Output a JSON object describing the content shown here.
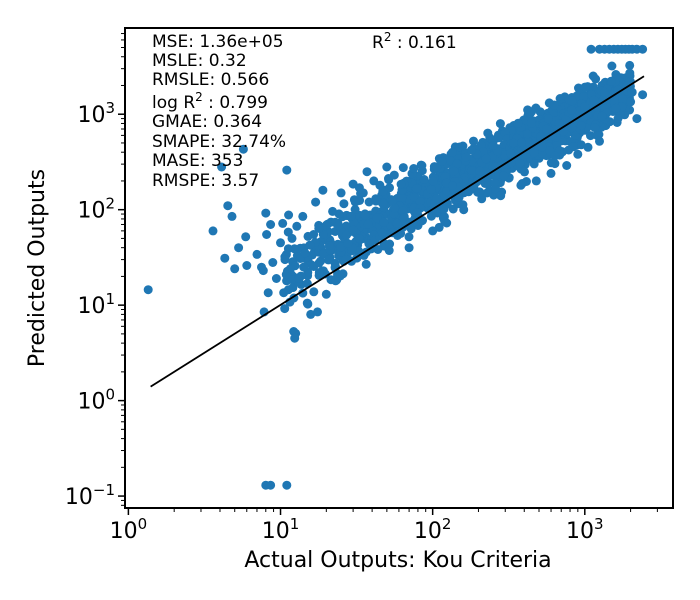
{
  "chart_data": {
    "type": "scatter",
    "title": "",
    "xlabel": "Actual Outputs: Kou Criteria",
    "ylabel": "Predicted Outputs",
    "xscale": "log",
    "yscale": "log",
    "xlim": [
      0.95,
      3800
    ],
    "ylim": [
      0.075,
      8000
    ],
    "grid": false,
    "colors": {
      "points": "#1f77b4",
      "fit_line": "#000000"
    },
    "x_ticks": [
      {
        "value": 1,
        "base": "10",
        "exp": "0"
      },
      {
        "value": 10,
        "base": "10",
        "exp": "1"
      },
      {
        "value": 100,
        "base": "10",
        "exp": "2"
      },
      {
        "value": 1000,
        "base": "10",
        "exp": "3"
      }
    ],
    "y_ticks": [
      {
        "value": 0.1,
        "base": "10",
        "exp": "−1"
      },
      {
        "value": 1,
        "base": "10",
        "exp": "0"
      },
      {
        "value": 10,
        "base": "10",
        "exp": "1"
      },
      {
        "value": 100,
        "base": "10",
        "exp": "2"
      },
      {
        "value": 1000,
        "base": "10",
        "exp": "3"
      }
    ],
    "metrics": {
      "mse": "MSE: 1.36e+05",
      "msle": "MSLE: 0.32",
      "rmsle": "RMSLE: 0.566",
      "log_r2_prefix": "log R",
      "log_r2_sup": "2",
      "log_r2_value": " : 0.799",
      "gmae": "GMAE: 0.364",
      "smape": "SMAPE: 32.74%",
      "mase": "MASE: 353",
      "rmspe": "RMSPE: 3.57",
      "r2_prefix": "R",
      "r2_sup": "2",
      "r2_value": " : 0.161"
    },
    "fit_line": {
      "x": [
        1.4,
        2450
      ],
      "y": [
        1.4,
        2500
      ]
    },
    "outlier_points": [
      {
        "x": 1.35,
        "y": 14.5
      },
      {
        "x": 3.6,
        "y": 60
      },
      {
        "x": 4.1,
        "y": 280
      },
      {
        "x": 4.3,
        "y": 31
      },
      {
        "x": 4.5,
        "y": 110
      },
      {
        "x": 4.8,
        "y": 85
      },
      {
        "x": 5.0,
        "y": 24
      },
      {
        "x": 5.3,
        "y": 40
      },
      {
        "x": 5.7,
        "y": 430
      },
      {
        "x": 5.9,
        "y": 52
      },
      {
        "x": 6.0,
        "y": 26
      },
      {
        "x": 7.0,
        "y": 34
      },
      {
        "x": 7.5,
        "y": 25
      },
      {
        "x": 7.7,
        "y": 23
      },
      {
        "x": 7.8,
        "y": 8.5
      },
      {
        "x": 8.0,
        "y": 92
      },
      {
        "x": 8.1,
        "y": 55
      },
      {
        "x": 8.3,
        "y": 13.5
      },
      {
        "x": 8.6,
        "y": 70
      },
      {
        "x": 8.9,
        "y": 28
      },
      {
        "x": 9.4,
        "y": 19
      },
      {
        "x": 10.0,
        "y": 45
      },
      {
        "x": 10.5,
        "y": 13.5
      },
      {
        "x": 10.7,
        "y": 30
      },
      {
        "x": 11.0,
        "y": 260
      },
      {
        "x": 11.3,
        "y": 88
      },
      {
        "x": 11.6,
        "y": 24
      },
      {
        "x": 11.9,
        "y": 50
      },
      {
        "x": 12.2,
        "y": 5.3
      },
      {
        "x": 12.4,
        "y": 4.5
      },
      {
        "x": 12.8,
        "y": 67
      },
      {
        "x": 13.2,
        "y": 19
      },
      {
        "x": 14.0,
        "y": 85
      },
      {
        "x": 14.5,
        "y": 35
      },
      {
        "x": 15.0,
        "y": 10.5
      },
      {
        "x": 15.8,
        "y": 8.0
      },
      {
        "x": 16.5,
        "y": 55
      },
      {
        "x": 17.0,
        "y": 120
      },
      {
        "x": 17.5,
        "y": 8.5
      },
      {
        "x": 18.0,
        "y": 22
      },
      {
        "x": 19.0,
        "y": 160
      },
      {
        "x": 20.0,
        "y": 13
      },
      {
        "x": 21.0,
        "y": 42
      },
      {
        "x": 22.0,
        "y": 96
      },
      {
        "x": 23.0,
        "y": 18
      },
      {
        "x": 24.0,
        "y": 68
      },
      {
        "x": 25.0,
        "y": 150
      },
      {
        "x": 27.0,
        "y": 30
      },
      {
        "x": 29.0,
        "y": 85
      },
      {
        "x": 31.0,
        "y": 120
      },
      {
        "x": 33.0,
        "y": 170
      },
      {
        "x": 35.0,
        "y": 150
      },
      {
        "x": 37.0,
        "y": 250
      },
      {
        "x": 41.0,
        "y": 200
      },
      {
        "x": 45.0,
        "y": 180
      },
      {
        "x": 47.0,
        "y": 155
      },
      {
        "x": 52.0,
        "y": 170
      },
      {
        "x": 56.0,
        "y": 230
      },
      {
        "x": 62.0,
        "y": 185
      },
      {
        "x": 70.0,
        "y": 40
      },
      {
        "x": 75.0,
        "y": 270
      },
      {
        "x": 85.0,
        "y": 290
      },
      {
        "x": 100.0,
        "y": 60
      },
      {
        "x": 115.0,
        "y": 320
      },
      {
        "x": 120.0,
        "y": 75
      },
      {
        "x": 135.0,
        "y": 400
      },
      {
        "x": 160.0,
        "y": 100
      },
      {
        "x": 180.0,
        "y": 420
      },
      {
        "x": 210.0,
        "y": 130
      },
      {
        "x": 250.0,
        "y": 470
      },
      {
        "x": 280.0,
        "y": 140
      },
      {
        "x": 340.0,
        "y": 500
      },
      {
        "x": 380.0,
        "y": 180
      },
      {
        "x": 420.0,
        "y": 620
      },
      {
        "x": 480.0,
        "y": 200
      },
      {
        "x": 560.0,
        "y": 700
      },
      {
        "x": 600.0,
        "y": 240
      },
      {
        "x": 680.0,
        "y": 800
      },
      {
        "x": 760.0,
        "y": 290
      },
      {
        "x": 820.0,
        "y": 1100
      },
      {
        "x": 900.0,
        "y": 380
      },
      {
        "x": 1000.0,
        "y": 1200
      },
      {
        "x": 1050.0,
        "y": 450
      },
      {
        "x": 1150.0,
        "y": 1400
      },
      {
        "x": 1250.0,
        "y": 520
      },
      {
        "x": 1350.0,
        "y": 1700
      },
      {
        "x": 1500.0,
        "y": 2200
      },
      {
        "x": 1650.0,
        "y": 1800
      },
      {
        "x": 1750.0,
        "y": 1200
      },
      {
        "x": 1900.0,
        "y": 2000
      },
      {
        "x": 2050.0,
        "y": 1700
      },
      {
        "x": 2200.0,
        "y": 900
      },
      {
        "x": 2400.0,
        "y": 1600
      },
      {
        "x": 820.0,
        "y": 720
      },
      {
        "x": 950.0,
        "y": 760
      },
      {
        "x": 1300.0,
        "y": 950
      },
      {
        "x": 1600.0,
        "y": 1150
      },
      {
        "x": 2000.0,
        "y": 1350
      },
      {
        "x": 1100.0,
        "y": 4800
      },
      {
        "x": 1250.0,
        "y": 4800
      },
      {
        "x": 1350.0,
        "y": 4800
      },
      {
        "x": 1450.0,
        "y": 4800
      },
      {
        "x": 1550.0,
        "y": 4800
      },
      {
        "x": 1650.0,
        "y": 4800
      },
      {
        "x": 1750.0,
        "y": 4800
      },
      {
        "x": 1850.0,
        "y": 4800
      },
      {
        "x": 1950.0,
        "y": 4800
      },
      {
        "x": 2050.0,
        "y": 4800
      },
      {
        "x": 2200.0,
        "y": 4800
      },
      {
        "x": 2400.0,
        "y": 4800
      },
      {
        "x": 8.0,
        "y": 0.13
      },
      {
        "x": 8.6,
        "y": 0.13
      },
      {
        "x": 11.0,
        "y": 0.13
      }
    ],
    "cloud_points": {
      "count": 1400,
      "x_range": [
        10,
        2000
      ],
      "trend_y_at_10": 20,
      "trend_slope": 0.86,
      "note": "Dense body of points following a power-law trend; generated deterministically."
    }
  }
}
